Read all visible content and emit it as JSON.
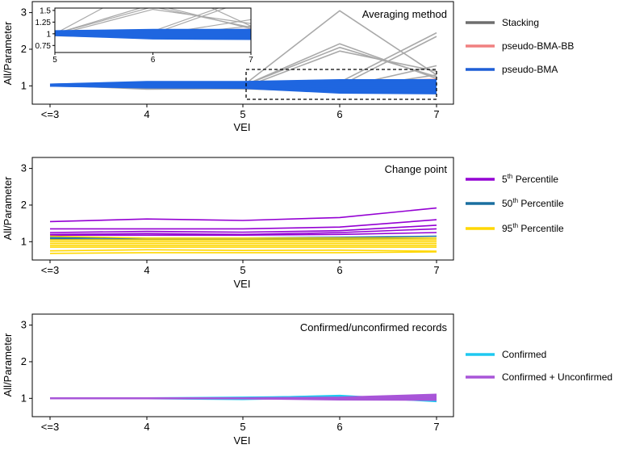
{
  "chart_data": [
    {
      "type": "line",
      "title": "Averaging method",
      "xlabel": "VEI",
      "ylabel": "All/Parameter",
      "categories": [
        "<=3",
        "4",
        "5",
        "6",
        "7"
      ],
      "ylim": [
        0.5,
        3.3
      ],
      "yticks": [
        "1",
        "2",
        "3"
      ],
      "legend_position": "right",
      "series": [
        {
          "name": "Stacking",
          "color": "#6e6e6e",
          "line_color": "#a9a9a9",
          "lines": [
            [
              1.02,
              1.0,
              1.0,
              3.05,
              1.3
            ],
            [
              1.02,
              0.98,
              1.0,
              2.15,
              1.2
            ],
            [
              1.02,
              0.97,
              1.0,
              2.05,
              1.25
            ],
            [
              1.02,
              0.95,
              0.95,
              1.95,
              1.4
            ],
            [
              1.02,
              0.97,
              1.0,
              1.1,
              2.45
            ],
            [
              1.02,
              0.98,
              1.0,
              1.0,
              2.35
            ],
            [
              1.02,
              0.96,
              0.98,
              0.95,
              1.55
            ],
            [
              1.02,
              0.95,
              0.97,
              0.9,
              1.3
            ],
            [
              1.02,
              0.94,
              0.96,
              0.88,
              1.1
            ],
            [
              1.02,
              0.93,
              0.95,
              0.86,
              0.95
            ],
            [
              1.02,
              0.92,
              0.93,
              0.85,
              0.9
            ],
            [
              1.02,
              0.91,
              0.92,
              0.84,
              0.88
            ]
          ]
        },
        {
          "name": "pseudo-BMA-BB",
          "color": "#f08080",
          "line_color": "#f08080",
          "lines": [
            [
              1.03,
              1.08,
              1.07,
              1.12,
              1.18
            ],
            [
              1.02,
              1.05,
              1.05,
              1.08,
              1.12
            ]
          ]
        },
        {
          "name": "pseudo-BMA",
          "color": "#1f5fd6",
          "line_color": "#1f66e0",
          "lines": [
            [
              1.03,
              1.1,
              1.1,
              1.15,
              1.15
            ],
            [
              1.03,
              1.08,
              1.07,
              1.1,
              1.1
            ],
            [
              1.02,
              1.06,
              1.05,
              1.05,
              1.05
            ],
            [
              1.02,
              1.04,
              1.03,
              1.0,
              1.0
            ],
            [
              1.02,
              1.02,
              1.01,
              0.95,
              0.95
            ],
            [
              1.02,
              1.0,
              0.99,
              0.9,
              0.9
            ],
            [
              1.01,
              0.98,
              0.97,
              0.85,
              0.85
            ],
            [
              1.01,
              0.96,
              0.95,
              0.82,
              0.8
            ]
          ]
        }
      ],
      "inset": {
        "xticks": [
          "5",
          "6",
          "7"
        ],
        "yticks": [
          "0.75",
          "1",
          "1.25",
          "1.5"
        ],
        "xlim": [
          5,
          7
        ],
        "ylim": [
          0.6,
          1.55
        ]
      }
    },
    {
      "type": "line",
      "title": "Change point",
      "xlabel": "VEI",
      "ylabel": "All/Parameter",
      "categories": [
        "<=3",
        "4",
        "5",
        "6",
        "7"
      ],
      "ylim": [
        0.5,
        3.3
      ],
      "yticks": [
        "1",
        "2",
        "3"
      ],
      "legend_position": "right",
      "series": [
        {
          "name": "5th Percentile",
          "legend_base": "5",
          "legend_sup": "th",
          "legend_rest": " Percentile",
          "color": "#9400d3",
          "lines": [
            [
              1.55,
              1.62,
              1.58,
              1.66,
              1.92
            ],
            [
              1.35,
              1.35,
              1.35,
              1.4,
              1.6
            ],
            [
              1.25,
              1.28,
              1.26,
              1.3,
              1.45
            ],
            [
              1.2,
              1.22,
              1.2,
              1.25,
              1.35
            ],
            [
              1.18,
              1.18,
              1.18,
              1.2,
              1.25
            ]
          ]
        },
        {
          "name": "50th Percentile",
          "legend_base": "50",
          "legend_sup": "th",
          "legend_rest": " Percentile",
          "color": "#1a6fa0",
          "lines": [
            [
              1.12,
              1.1,
              1.1,
              1.12,
              1.15
            ],
            [
              1.08,
              1.06,
              1.06,
              1.08,
              1.1
            ]
          ]
        },
        {
          "name": "95th Percentile",
          "legend_base": "95",
          "legend_sup": "th",
          "legend_rest": " Percentile",
          "color": "#ffd700",
          "lines": [
            [
              1.15,
              1.1,
              1.1,
              1.1,
              1.1
            ],
            [
              1.05,
              1.05,
              1.05,
              1.05,
              1.05
            ],
            [
              1.0,
              1.0,
              1.0,
              1.0,
              1.0
            ],
            [
              0.95,
              0.95,
              0.95,
              0.95,
              0.95
            ],
            [
              0.9,
              0.9,
              0.9,
              0.9,
              0.9
            ],
            [
              0.85,
              0.85,
              0.85,
              0.85,
              0.85
            ],
            [
              0.75,
              0.78,
              0.76,
              0.77,
              0.74
            ],
            [
              0.68,
              0.7,
              0.7,
              0.7,
              0.72
            ]
          ]
        }
      ]
    },
    {
      "type": "line",
      "title": "Confirmed/unconfirmed records",
      "xlabel": "VEI",
      "ylabel": "All/Parameter",
      "categories": [
        "<=3",
        "4",
        "5",
        "6",
        "7"
      ],
      "ylim": [
        0.5,
        3.3
      ],
      "yticks": [
        "1",
        "2",
        "3"
      ],
      "legend_position": "right",
      "series": [
        {
          "name": "Confirmed",
          "color": "#1ec8f0",
          "lines": [
            [
              1.0,
              1.0,
              1.0,
              1.07,
              0.92
            ],
            [
              1.0,
              1.0,
              1.02,
              1.05,
              0.95
            ],
            [
              1.0,
              1.0,
              0.98,
              1.03,
              0.98
            ]
          ]
        },
        {
          "name": "Confirmed + Unconfirmed",
          "color": "#a855d8",
          "lines": [
            [
              1.0,
              1.0,
              1.0,
              1.02,
              1.1
            ],
            [
              1.0,
              1.0,
              1.0,
              1.0,
              1.05
            ],
            [
              1.0,
              1.0,
              1.0,
              0.98,
              1.0
            ],
            [
              1.0,
              1.0,
              1.0,
              0.97,
              0.96
            ]
          ]
        }
      ]
    }
  ]
}
